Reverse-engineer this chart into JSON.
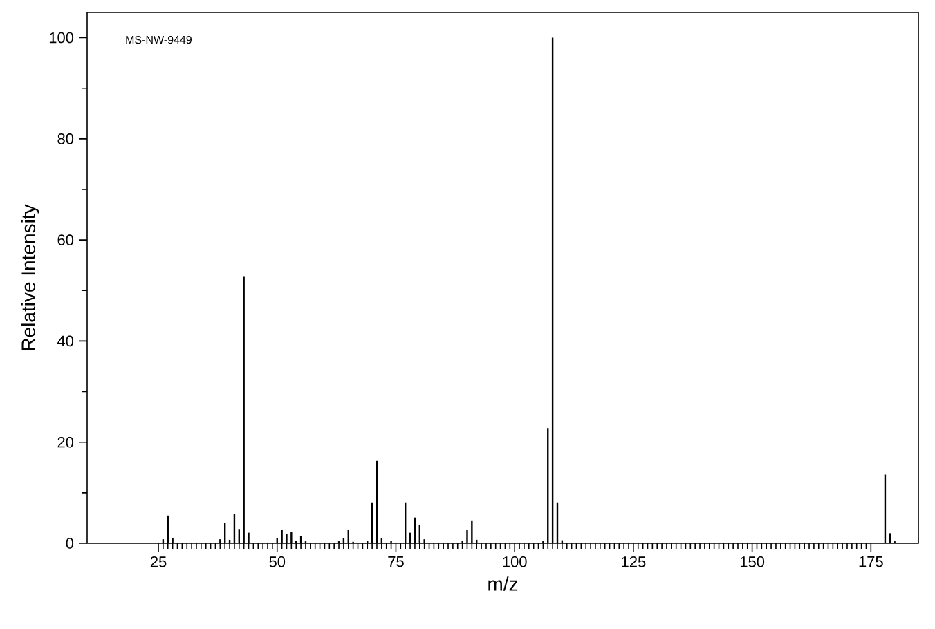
{
  "chart_data": {
    "type": "bar",
    "xlabel": "m/z",
    "ylabel": "Relative Intensity",
    "color": "#000000",
    "x": [
      26,
      27,
      28,
      38,
      39,
      40,
      41,
      42,
      43,
      44,
      50,
      51,
      52,
      53,
      54,
      55,
      56,
      63,
      64,
      65,
      66,
      69,
      70,
      71,
      72,
      74,
      77,
      78,
      79,
      80,
      81,
      89,
      90,
      91,
      92,
      106,
      107,
      108,
      109,
      110,
      178,
      179,
      180
    ],
    "values": [
      0.8,
      5.5,
      1.1,
      0.8,
      4,
      0.7,
      5.8,
      2.7,
      52.7,
      2.1,
      1,
      2.6,
      1.9,
      2.2,
      0.5,
      1.4,
      0.4,
      0.4,
      1,
      2.6,
      0.3,
      0.5,
      8.1,
      16.3,
      1,
      0.5,
      8.1,
      2.1,
      5.1,
      3.7,
      0.8,
      0.5,
      2.6,
      4.4,
      0.7,
      0.5,
      22.8,
      100,
      8.1,
      0.6,
      13.6,
      2,
      0.4
    ],
    "xlim": [
      10,
      185
    ],
    "ylim": [
      0,
      105
    ],
    "xticks": [
      25,
      50,
      75,
      100,
      125,
      150,
      175
    ],
    "yticks": [
      0,
      20,
      40,
      60,
      80,
      100
    ],
    "annotations": [
      "MS-NW-9449"
    ]
  }
}
